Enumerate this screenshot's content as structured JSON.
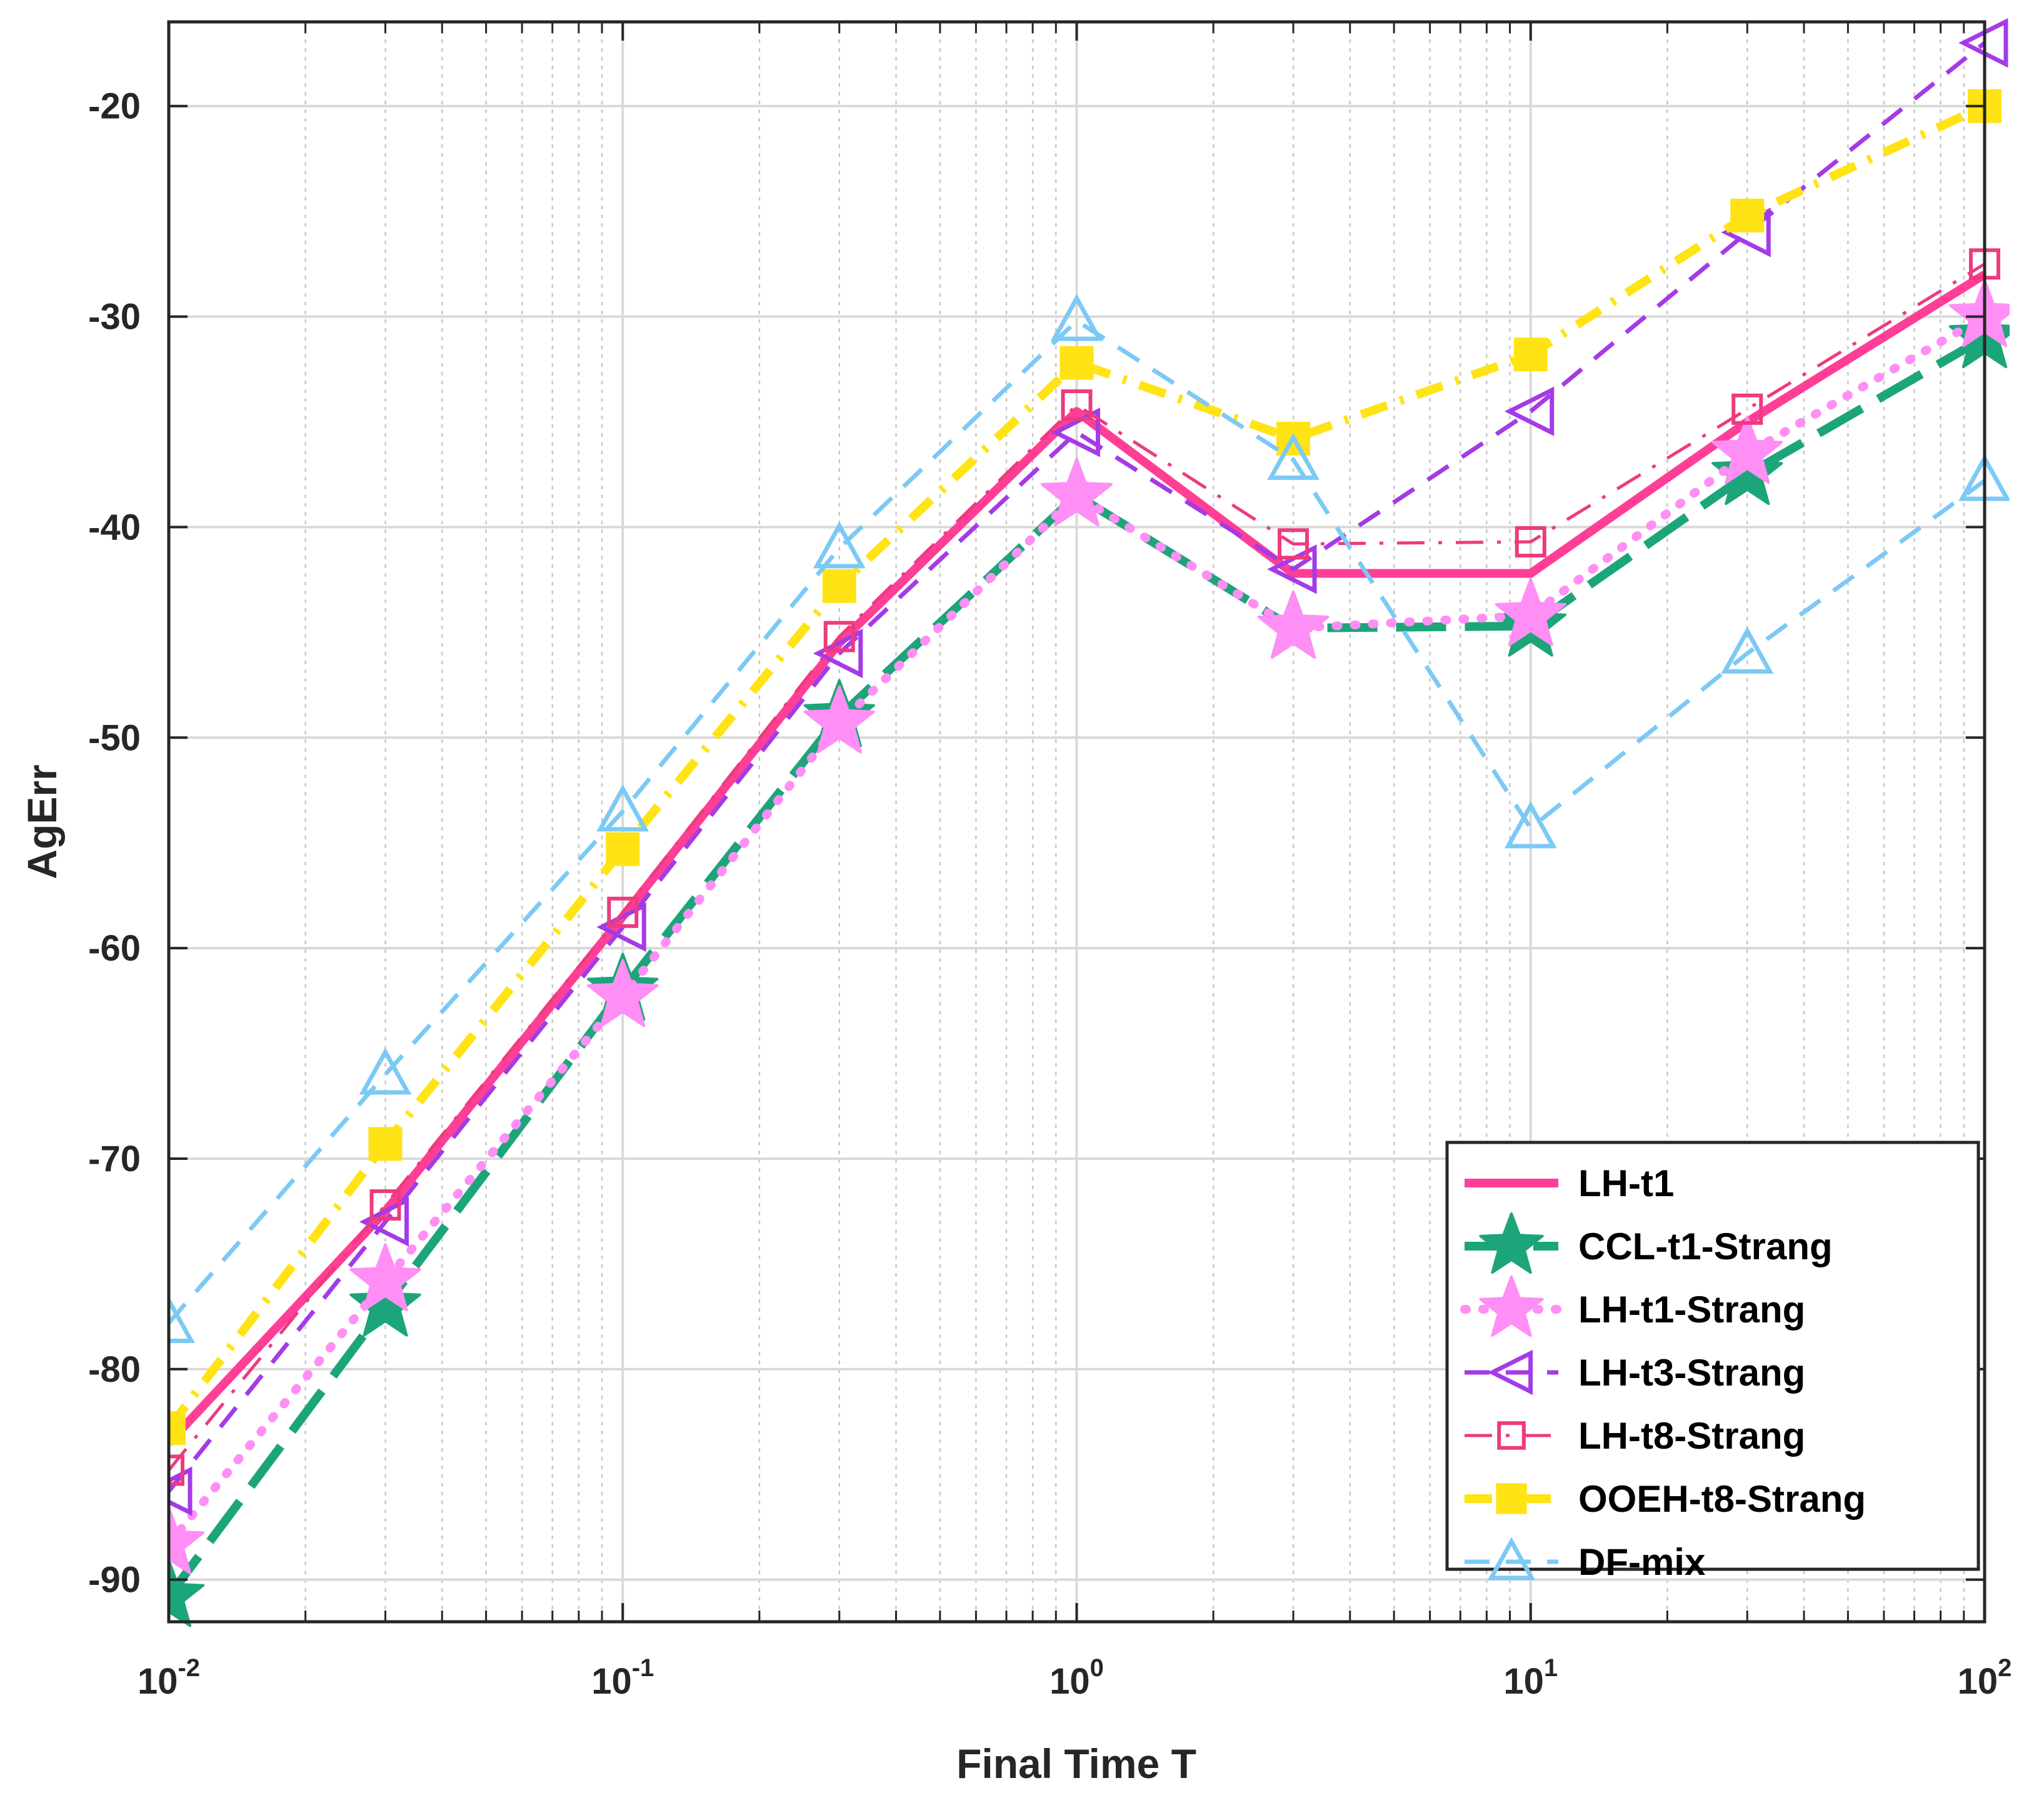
{
  "chart_data": {
    "type": "line",
    "xscale": "log",
    "xlabel": "Final Time T",
    "ylabel": "AgErr",
    "xlim": [
      0.01,
      100
    ],
    "ylim": [
      -92,
      -16
    ],
    "grid": true,
    "legend_location": "bottom-right",
    "x_ticks": [
      {
        "base": "10",
        "exp": "-2"
      },
      {
        "base": "10",
        "exp": "-1"
      },
      {
        "base": "10",
        "exp": "0"
      },
      {
        "base": "10",
        "exp": "1"
      },
      {
        "base": "10",
        "exp": "2"
      }
    ],
    "y_ticks": [
      "-90",
      "-80",
      "-70",
      "-60",
      "-50",
      "-40",
      "-30",
      "-20"
    ],
    "x": [
      0.01,
      0.03,
      0.1,
      0.3,
      1,
      3,
      10,
      30,
      100
    ],
    "series": [
      {
        "name": "LH-t1",
        "color": "#ff3e96",
        "dash": "solid",
        "marker": "none",
        "width": 14,
        "values": [
          -83.5,
          -72.5,
          -58.5,
          -45.5,
          -34.5,
          -42.2,
          -42.2,
          -35,
          -28
        ]
      },
      {
        "name": "CCL-t1-Strang",
        "color": "#1ca57a",
        "dash": "longdash",
        "marker": "star",
        "width": 14,
        "values": [
          -90.8,
          -77,
          -62,
          -49,
          -38.5,
          -44.8,
          -44.7,
          -37.5,
          -31
        ]
      },
      {
        "name": "LH-t1-Strang",
        "color": "#ff8ef5",
        "dash": "dotted",
        "marker": "star",
        "width": 14,
        "values": [
          -88.3,
          -75.8,
          -62.3,
          -49.3,
          -38.5,
          -44.8,
          -44.2,
          -36.5,
          -30
        ]
      },
      {
        "name": "LH-t3-Strang",
        "color": "#a43be6",
        "dash": "dash",
        "marker": "triangle-left",
        "width": 7,
        "values": [
          -85.8,
          -73,
          -59,
          -46,
          -35.5,
          -42,
          -34.5,
          -26,
          -17
        ]
      },
      {
        "name": "LH-t8-Strang",
        "color": "#ee3a7e",
        "dash": "dashdot",
        "marker": "square",
        "width": 5,
        "values": [
          -84.8,
          -72.2,
          -58.3,
          -45.2,
          -34.2,
          -40.8,
          -40.7,
          -34.4,
          -27.5
        ]
      },
      {
        "name": "OOEH-t8-Strang",
        "color": "#ffe314",
        "dash": "dashdot",
        "marker": "square-filled",
        "width": 14,
        "values": [
          -82.8,
          -69.3,
          -55.3,
          -42.8,
          -32.2,
          -35.8,
          -31.8,
          -25.2,
          -20
        ]
      },
      {
        "name": "DF-mix",
        "color": "#7cc9f5",
        "dash": "dash",
        "marker": "triangle-up",
        "width": 7,
        "values": [
          -77.8,
          -66,
          -53.5,
          -41,
          -30.2,
          -36.8,
          -54.3,
          -46,
          -37.8
        ]
      }
    ]
  }
}
